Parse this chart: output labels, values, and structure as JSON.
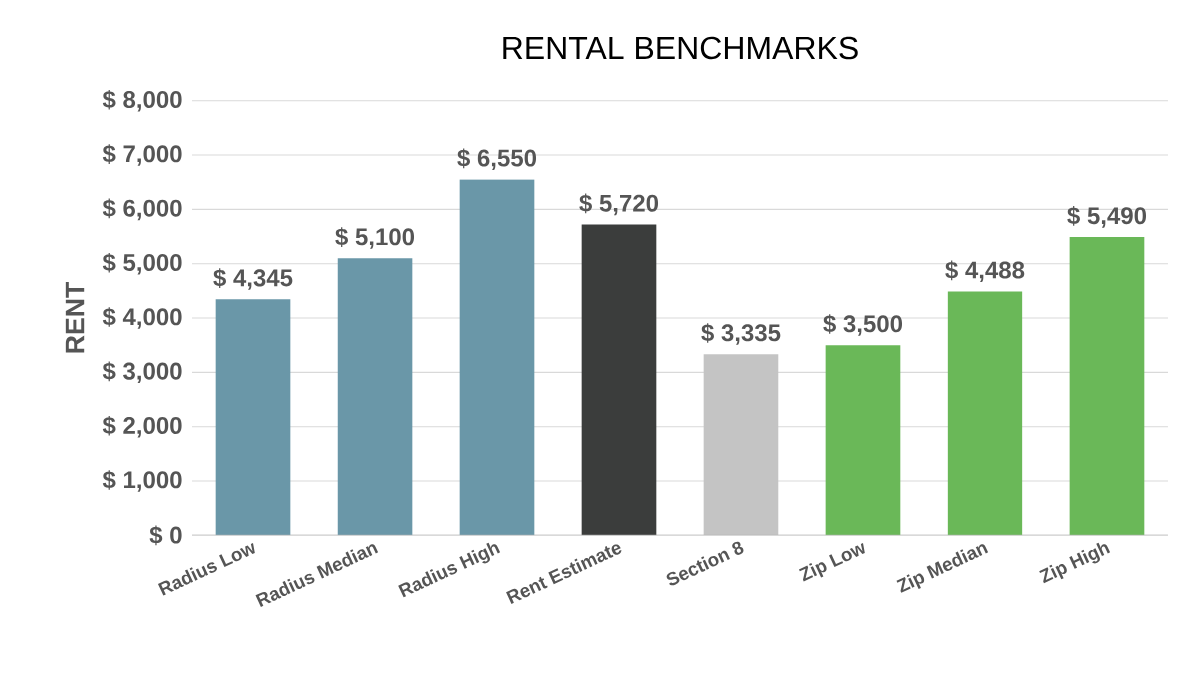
{
  "chart_data": {
    "type": "bar",
    "title": "RENTAL BENCHMARKS",
    "ylabel": "RENT",
    "categories": [
      "Radius Low",
      "Radius Median",
      "Radius High",
      "Rent Estimate",
      "Section 8",
      "Zip Low",
      "Zip Median",
      "Zip High"
    ],
    "values": [
      4345,
      5100,
      6550,
      5720,
      3335,
      3500,
      4488,
      5490
    ],
    "colors": [
      "#6a97a8",
      "#6a97a8",
      "#6a97a8",
      "#3b3d3c",
      "#c4c4c4",
      "#6ab858",
      "#6ab858",
      "#6ab858"
    ],
    "value_labels": [
      "$ 4,345",
      "$ 5,100",
      "$ 6,550",
      "$ 5,720",
      "$ 3,335",
      "$ 3,500",
      "$ 4,488",
      "$ 5,490"
    ],
    "ylim": [
      0,
      8000
    ],
    "yticks": [
      {
        "value": 0,
        "label": "$ 0"
      },
      {
        "value": 1000,
        "label": "$ 1,000"
      },
      {
        "value": 2000,
        "label": "$ 2,000"
      },
      {
        "value": 3000,
        "label": "$ 3,000"
      },
      {
        "value": 4000,
        "label": "$ 4,000"
      },
      {
        "value": 5000,
        "label": "$ 5,000"
      },
      {
        "value": 6000,
        "label": "$ 6,000"
      },
      {
        "value": 7000,
        "label": "$ 7,000"
      },
      {
        "value": 8000,
        "label": "$ 8,000"
      }
    ],
    "grid": "y"
  }
}
